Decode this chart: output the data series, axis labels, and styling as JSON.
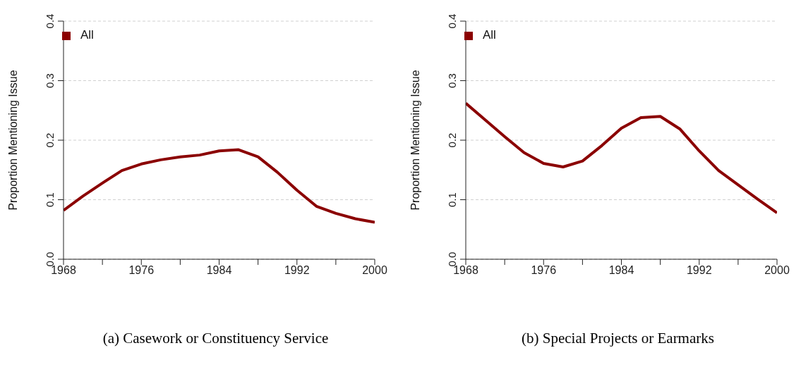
{
  "chart_data": [
    {
      "type": "line",
      "title": "(a) Casework or Constituency Service",
      "ylabel": "Proportion Mentioning Issue",
      "x": [
        1968,
        1970,
        1972,
        1974,
        1976,
        1978,
        1980,
        1982,
        1984,
        1986,
        1988,
        1990,
        1992,
        1994,
        1996,
        1998,
        2000
      ],
      "series": [
        {
          "name": "All",
          "color": "#8b0000",
          "values": [
            0.082,
            0.106,
            0.128,
            0.149,
            0.16,
            0.167,
            0.172,
            0.175,
            0.182,
            0.184,
            0.172,
            0.146,
            0.116,
            0.089,
            0.077,
            0.068,
            0.062
          ]
        }
      ],
      "xlim": [
        1968,
        2000
      ],
      "xticks": [
        1968,
        {
          "value": 1972,
          "label": null
        },
        1976,
        {
          "value": 1980,
          "label": null
        },
        1984,
        {
          "value": 1988,
          "label": null
        },
        1992,
        {
          "value": 1996,
          "label": null
        },
        2000
      ],
      "ylim": [
        0,
        0.4
      ],
      "yticks": [
        {
          "value": 0,
          "label": "0.0"
        },
        0.1,
        0.2,
        0.3,
        0.4
      ],
      "grid": "y",
      "legend": "top left",
      "marker": "none",
      "line_style": "solid"
    },
    {
      "type": "line",
      "title": "(b) Special Projects or Earmarks",
      "ylabel": "Proportion Mentioning Issue",
      "x": [
        1968,
        1970,
        1972,
        1974,
        1976,
        1978,
        1980,
        1982,
        1984,
        1986,
        1988,
        1990,
        1992,
        1994,
        1996,
        1998,
        2000
      ],
      "series": [
        {
          "name": "All",
          "color": "#8b0000",
          "values": [
            0.262,
            0.234,
            0.206,
            0.179,
            0.161,
            0.155,
            0.165,
            0.191,
            0.22,
            0.238,
            0.24,
            0.219,
            0.182,
            0.149,
            0.125,
            0.101,
            0.078
          ]
        }
      ],
      "xlim": [
        1968,
        2000
      ],
      "xticks": [
        1968,
        {
          "value": 1972,
          "label": null
        },
        1976,
        {
          "value": 1980,
          "label": null
        },
        1984,
        {
          "value": 1988,
          "label": null
        },
        1992,
        {
          "value": 1996,
          "label": null
        },
        2000
      ],
      "ylim": [
        0,
        0.4
      ],
      "yticks": [
        {
          "value": 0,
          "label": "0.0"
        },
        0.1,
        0.2,
        0.3,
        0.4
      ],
      "grid": "y",
      "legend": "top left",
      "marker": "none",
      "line_style": "solid"
    }
  ]
}
